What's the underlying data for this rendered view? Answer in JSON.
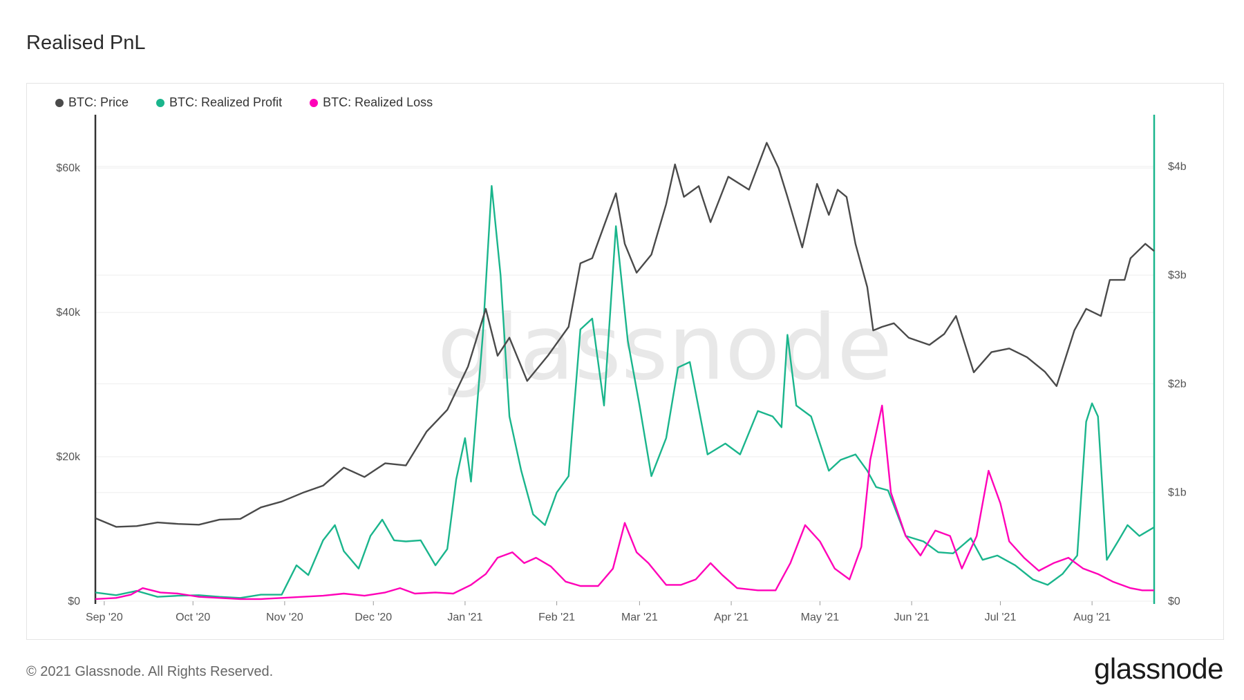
{
  "page": {
    "title": "Realised PnL",
    "copyright": "© 2021 Glassnode. All Rights Reserved.",
    "logo_text": "glassnode",
    "watermark": "glassnode"
  },
  "colors": {
    "price": "#4a4a4a",
    "profit": "#1ab58c",
    "loss": "#ff00b8",
    "grid": "#eeeeee"
  },
  "chart_data": {
    "type": "line",
    "title": "",
    "x_start": "2020-08-29",
    "x_end": "2021-08-22",
    "x_tick_labels": [
      "Sep '20",
      "Oct '20",
      "Nov '20",
      "Dec '20",
      "Jan '21",
      "Feb '21",
      "Mar '21",
      "Apr '21",
      "May '21",
      "Jun '21",
      "Jul '21",
      "Aug '21"
    ],
    "x_tick_dates": [
      "2020-09-01",
      "2020-10-01",
      "2020-11-01",
      "2020-12-01",
      "2021-01-01",
      "2021-02-01",
      "2021-03-01",
      "2021-04-01",
      "2021-05-01",
      "2021-06-01",
      "2021-07-01",
      "2021-08-01"
    ],
    "y_left": {
      "ticks": [
        0,
        20000,
        40000,
        60000
      ],
      "tick_labels": [
        "$0",
        "$20k",
        "$40k",
        "$60k"
      ],
      "range": [
        0,
        67000
      ]
    },
    "y_right": {
      "ticks": [
        0,
        1000000000,
        2000000000,
        3000000000,
        4000000000
      ],
      "tick_labels": [
        "$0",
        "$1b",
        "$2b",
        "$3b",
        "$4b"
      ],
      "range": [
        0,
        4450000000
      ]
    },
    "legend_position": "top-left",
    "series": [
      {
        "name": "BTC: Price",
        "axis": "left",
        "color": "#4a4a4a",
        "points": [
          [
            "2020-08-29",
            11500
          ],
          [
            "2020-09-05",
            10300
          ],
          [
            "2020-09-12",
            10400
          ],
          [
            "2020-09-19",
            10900
          ],
          [
            "2020-09-26",
            10700
          ],
          [
            "2020-10-03",
            10600
          ],
          [
            "2020-10-10",
            11300
          ],
          [
            "2020-10-17",
            11400
          ],
          [
            "2020-10-24",
            13000
          ],
          [
            "2020-10-31",
            13800
          ],
          [
            "2020-11-07",
            15000
          ],
          [
            "2020-11-14",
            16000
          ],
          [
            "2020-11-21",
            18500
          ],
          [
            "2020-11-28",
            17200
          ],
          [
            "2020-12-05",
            19100
          ],
          [
            "2020-12-12",
            18800
          ],
          [
            "2020-12-19",
            23500
          ],
          [
            "2020-12-26",
            26500
          ],
          [
            "2021-01-02",
            32500
          ],
          [
            "2021-01-08",
            40500
          ],
          [
            "2021-01-12",
            34000
          ],
          [
            "2021-01-16",
            36500
          ],
          [
            "2021-01-22",
            30500
          ],
          [
            "2021-01-29",
            34000
          ],
          [
            "2021-02-05",
            38000
          ],
          [
            "2021-02-09",
            46800
          ],
          [
            "2021-02-13",
            47500
          ],
          [
            "2021-02-17",
            52000
          ],
          [
            "2021-02-21",
            56500
          ],
          [
            "2021-02-24",
            49500
          ],
          [
            "2021-02-28",
            45500
          ],
          [
            "2021-03-05",
            48000
          ],
          [
            "2021-03-10",
            55000
          ],
          [
            "2021-03-13",
            60500
          ],
          [
            "2021-03-16",
            56000
          ],
          [
            "2021-03-21",
            57500
          ],
          [
            "2021-03-25",
            52500
          ],
          [
            "2021-03-31",
            58800
          ],
          [
            "2021-04-07",
            57000
          ],
          [
            "2021-04-13",
            63500
          ],
          [
            "2021-04-17",
            60000
          ],
          [
            "2021-04-20",
            56000
          ],
          [
            "2021-04-25",
            49000
          ],
          [
            "2021-04-30",
            57800
          ],
          [
            "2021-05-04",
            53500
          ],
          [
            "2021-05-07",
            57000
          ],
          [
            "2021-05-10",
            56000
          ],
          [
            "2021-05-13",
            49500
          ],
          [
            "2021-05-17",
            43500
          ],
          [
            "2021-05-19",
            37500
          ],
          [
            "2021-05-22",
            38000
          ],
          [
            "2021-05-26",
            38500
          ],
          [
            "2021-05-31",
            36500
          ],
          [
            "2021-06-07",
            35500
          ],
          [
            "2021-06-12",
            37000
          ],
          [
            "2021-06-16",
            39500
          ],
          [
            "2021-06-22",
            31700
          ],
          [
            "2021-06-28",
            34500
          ],
          [
            "2021-07-04",
            35000
          ],
          [
            "2021-07-10",
            33800
          ],
          [
            "2021-07-16",
            31800
          ],
          [
            "2021-07-20",
            29800
          ],
          [
            "2021-07-26",
            37500
          ],
          [
            "2021-07-30",
            40500
          ],
          [
            "2021-08-04",
            39500
          ],
          [
            "2021-08-07",
            44500
          ],
          [
            "2021-08-12",
            44500
          ],
          [
            "2021-08-14",
            47500
          ],
          [
            "2021-08-19",
            49500
          ],
          [
            "2021-08-22",
            48500
          ]
        ]
      },
      {
        "name": "BTC: Realized Profit",
        "axis": "right",
        "color": "#1ab58c",
        "points": [
          [
            "2020-08-29",
            80000000
          ],
          [
            "2020-09-05",
            55000000
          ],
          [
            "2020-09-12",
            95000000
          ],
          [
            "2020-09-19",
            40000000
          ],
          [
            "2020-09-26",
            50000000
          ],
          [
            "2020-10-03",
            55000000
          ],
          [
            "2020-10-10",
            40000000
          ],
          [
            "2020-10-17",
            30000000
          ],
          [
            "2020-10-24",
            60000000
          ],
          [
            "2020-10-31",
            60000000
          ],
          [
            "2020-11-05",
            330000000
          ],
          [
            "2020-11-09",
            240000000
          ],
          [
            "2020-11-14",
            560000000
          ],
          [
            "2020-11-18",
            700000000
          ],
          [
            "2020-11-21",
            460000000
          ],
          [
            "2020-11-26",
            300000000
          ],
          [
            "2020-11-30",
            600000000
          ],
          [
            "2020-12-04",
            750000000
          ],
          [
            "2020-12-08",
            560000000
          ],
          [
            "2020-12-12",
            550000000
          ],
          [
            "2020-12-17",
            560000000
          ],
          [
            "2020-12-22",
            330000000
          ],
          [
            "2020-12-26",
            480000000
          ],
          [
            "2020-12-29",
            1120000000
          ],
          [
            "2021-01-01",
            1500000000
          ],
          [
            "2021-01-03",
            1100000000
          ],
          [
            "2021-01-07",
            2450000000
          ],
          [
            "2021-01-10",
            3820000000
          ],
          [
            "2021-01-13",
            3000000000
          ],
          [
            "2021-01-16",
            1700000000
          ],
          [
            "2021-01-20",
            1200000000
          ],
          [
            "2021-01-24",
            800000000
          ],
          [
            "2021-01-28",
            700000000
          ],
          [
            "2021-02-01",
            1000000000
          ],
          [
            "2021-02-05",
            1150000000
          ],
          [
            "2021-02-09",
            2500000000
          ],
          [
            "2021-02-13",
            2600000000
          ],
          [
            "2021-02-17",
            1800000000
          ],
          [
            "2021-02-21",
            3450000000
          ],
          [
            "2021-02-25",
            2400000000
          ],
          [
            "2021-03-01",
            1800000000
          ],
          [
            "2021-03-05",
            1150000000
          ],
          [
            "2021-03-10",
            1500000000
          ],
          [
            "2021-03-14",
            2150000000
          ],
          [
            "2021-03-18",
            2200000000
          ],
          [
            "2021-03-24",
            1350000000
          ],
          [
            "2021-03-30",
            1450000000
          ],
          [
            "2021-04-04",
            1350000000
          ],
          [
            "2021-04-10",
            1750000000
          ],
          [
            "2021-04-15",
            1700000000
          ],
          [
            "2021-04-18",
            1600000000
          ],
          [
            "2021-04-20",
            2450000000
          ],
          [
            "2021-04-23",
            1800000000
          ],
          [
            "2021-04-28",
            1700000000
          ],
          [
            "2021-05-04",
            1200000000
          ],
          [
            "2021-05-08",
            1300000000
          ],
          [
            "2021-05-13",
            1350000000
          ],
          [
            "2021-05-17",
            1200000000
          ],
          [
            "2021-05-20",
            1050000000
          ],
          [
            "2021-05-24",
            1020000000
          ],
          [
            "2021-05-30",
            600000000
          ],
          [
            "2021-06-05",
            550000000
          ],
          [
            "2021-06-10",
            450000000
          ],
          [
            "2021-06-15",
            440000000
          ],
          [
            "2021-06-21",
            580000000
          ],
          [
            "2021-06-25",
            380000000
          ],
          [
            "2021-06-30",
            420000000
          ],
          [
            "2021-07-06",
            330000000
          ],
          [
            "2021-07-12",
            200000000
          ],
          [
            "2021-07-17",
            150000000
          ],
          [
            "2021-07-22",
            250000000
          ],
          [
            "2021-07-27",
            420000000
          ],
          [
            "2021-07-30",
            1650000000
          ],
          [
            "2021-08-01",
            1820000000
          ],
          [
            "2021-08-03",
            1700000000
          ],
          [
            "2021-08-06",
            380000000
          ],
          [
            "2021-08-10",
            560000000
          ],
          [
            "2021-08-13",
            700000000
          ],
          [
            "2021-08-17",
            600000000
          ],
          [
            "2021-08-22",
            680000000
          ]
        ]
      },
      {
        "name": "BTC: Realized Loss",
        "axis": "right",
        "color": "#ff00b8",
        "points": [
          [
            "2020-08-29",
            20000000
          ],
          [
            "2020-09-05",
            30000000
          ],
          [
            "2020-09-10",
            60000000
          ],
          [
            "2020-09-14",
            120000000
          ],
          [
            "2020-09-20",
            80000000
          ],
          [
            "2020-09-26",
            70000000
          ],
          [
            "2020-10-03",
            40000000
          ],
          [
            "2020-10-10",
            30000000
          ],
          [
            "2020-10-17",
            20000000
          ],
          [
            "2020-10-24",
            20000000
          ],
          [
            "2020-10-31",
            30000000
          ],
          [
            "2020-11-07",
            40000000
          ],
          [
            "2020-11-14",
            50000000
          ],
          [
            "2020-11-21",
            70000000
          ],
          [
            "2020-11-28",
            50000000
          ],
          [
            "2020-12-05",
            80000000
          ],
          [
            "2020-12-10",
            120000000
          ],
          [
            "2020-12-15",
            70000000
          ],
          [
            "2020-12-22",
            80000000
          ],
          [
            "2020-12-28",
            70000000
          ],
          [
            "2021-01-03",
            150000000
          ],
          [
            "2021-01-08",
            250000000
          ],
          [
            "2021-01-12",
            400000000
          ],
          [
            "2021-01-17",
            450000000
          ],
          [
            "2021-01-21",
            350000000
          ],
          [
            "2021-01-25",
            400000000
          ],
          [
            "2021-01-30",
            320000000
          ],
          [
            "2021-02-04",
            180000000
          ],
          [
            "2021-02-09",
            140000000
          ],
          [
            "2021-02-15",
            140000000
          ],
          [
            "2021-02-20",
            300000000
          ],
          [
            "2021-02-24",
            720000000
          ],
          [
            "2021-02-28",
            450000000
          ],
          [
            "2021-03-04",
            350000000
          ],
          [
            "2021-03-10",
            150000000
          ],
          [
            "2021-03-15",
            150000000
          ],
          [
            "2021-03-20",
            200000000
          ],
          [
            "2021-03-25",
            350000000
          ],
          [
            "2021-03-29",
            240000000
          ],
          [
            "2021-04-03",
            120000000
          ],
          [
            "2021-04-10",
            100000000
          ],
          [
            "2021-04-16",
            100000000
          ],
          [
            "2021-04-21",
            350000000
          ],
          [
            "2021-04-26",
            700000000
          ],
          [
            "2021-05-01",
            550000000
          ],
          [
            "2021-05-06",
            300000000
          ],
          [
            "2021-05-11",
            200000000
          ],
          [
            "2021-05-15",
            500000000
          ],
          [
            "2021-05-18",
            1300000000
          ],
          [
            "2021-05-22",
            1800000000
          ],
          [
            "2021-05-25",
            1000000000
          ],
          [
            "2021-05-30",
            600000000
          ],
          [
            "2021-06-04",
            420000000
          ],
          [
            "2021-06-09",
            650000000
          ],
          [
            "2021-06-14",
            600000000
          ],
          [
            "2021-06-18",
            300000000
          ],
          [
            "2021-06-23",
            600000000
          ],
          [
            "2021-06-27",
            1200000000
          ],
          [
            "2021-07-01",
            900000000
          ],
          [
            "2021-07-04",
            550000000
          ],
          [
            "2021-07-09",
            400000000
          ],
          [
            "2021-07-14",
            280000000
          ],
          [
            "2021-07-19",
            350000000
          ],
          [
            "2021-07-24",
            400000000
          ],
          [
            "2021-07-29",
            300000000
          ],
          [
            "2021-08-03",
            250000000
          ],
          [
            "2021-08-08",
            180000000
          ],
          [
            "2021-08-14",
            120000000
          ],
          [
            "2021-08-18",
            100000000
          ],
          [
            "2021-08-22",
            100000000
          ]
        ]
      }
    ]
  }
}
